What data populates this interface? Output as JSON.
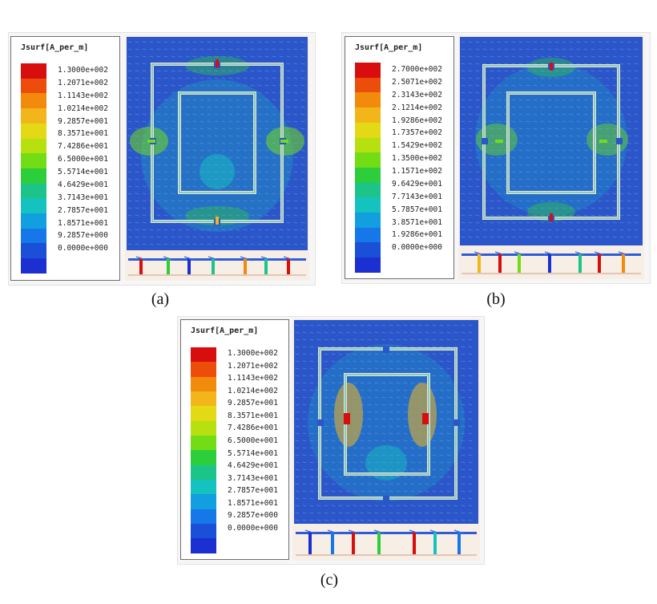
{
  "colormap": [
    "#d80d0d",
    "#ec4d0a",
    "#f28a0c",
    "#f3b61a",
    "#e3d914",
    "#b6e010",
    "#72dd14",
    "#2dce3b",
    "#1cc48a",
    "#14c3c0",
    "#119fe0",
    "#1577e8",
    "#1a4fd8",
    "#1c2fd0"
  ],
  "panels": [
    {
      "id": "a",
      "legend_title": "Jsurf[A_per_m]",
      "ticks": [
        "1.3000e+002",
        "1.2071e+002",
        "1.1143e+002",
        "1.0214e+002",
        "9.2857e+001",
        "8.3571e+001",
        "7.4286e+001",
        "6.5000e+001",
        "5.5714e+001",
        "4.6429e+001",
        "3.7143e+001",
        "2.7857e+001",
        "1.8571e+001",
        "9.2857e+000",
        "0.0000e+000"
      ],
      "caption": "(a)"
    },
    {
      "id": "b",
      "legend_title": "Jsurf[A_per_m]",
      "ticks": [
        "2.7000e+002",
        "2.5071e+002",
        "2.3143e+002",
        "2.1214e+002",
        "1.9286e+002",
        "1.7357e+002",
        "1.5429e+002",
        "1.3500e+002",
        "1.1571e+002",
        "9.6429e+001",
        "7.7143e+001",
        "5.7857e+001",
        "3.8571e+001",
        "1.9286e+001",
        "0.0000e+000"
      ],
      "caption": "(b)"
    },
    {
      "id": "c",
      "legend_title": "Jsurf[A_per_m]",
      "ticks": [
        "1.3000e+002",
        "1.2071e+002",
        "1.1143e+002",
        "1.0214e+002",
        "9.2857e+001",
        "8.3571e+001",
        "7.4286e+001",
        "6.5000e+001",
        "5.5714e+001",
        "4.6429e+001",
        "3.7143e+001",
        "2.7857e+001",
        "1.8571e+001",
        "9.2857e+000",
        "0.0000e+000"
      ],
      "caption": "(c)"
    }
  ]
}
